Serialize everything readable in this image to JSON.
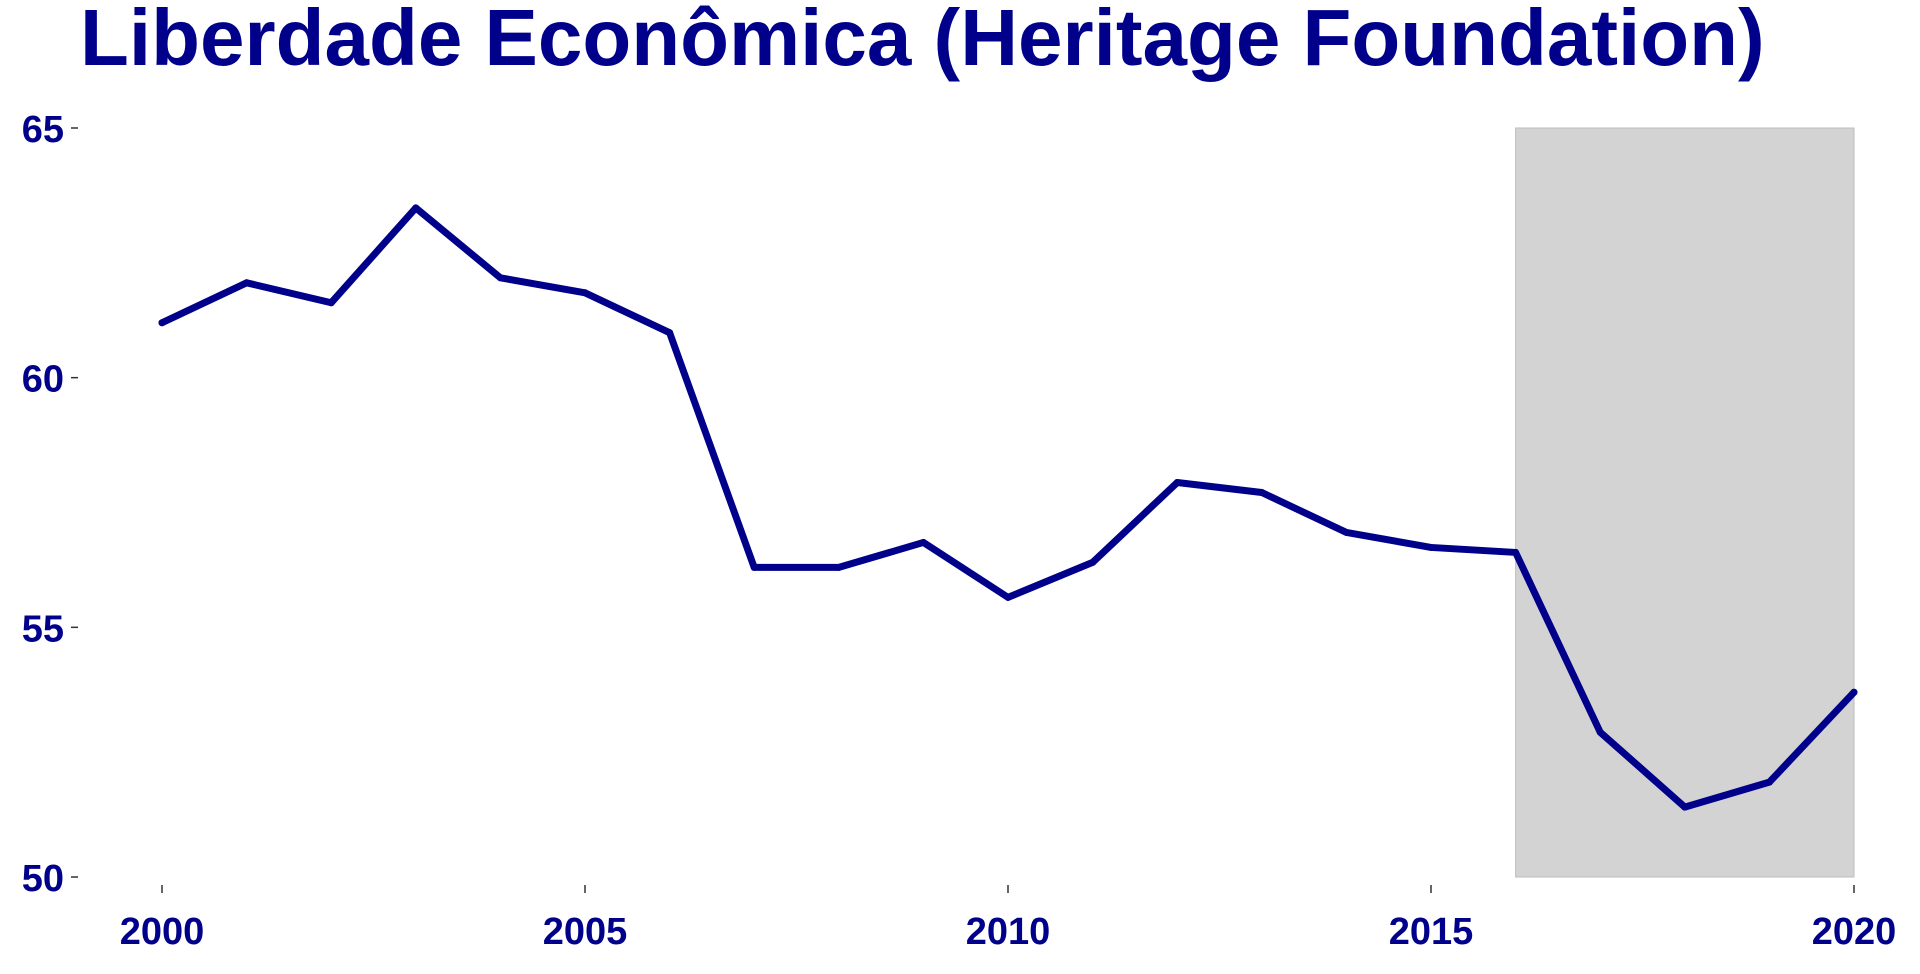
{
  "chart_data": {
    "type": "line",
    "title": "Liberdade Econômica (Heritage Foundation)",
    "xlabel": "",
    "ylabel": "",
    "x": [
      2000,
      2001,
      2002,
      2003,
      2004,
      2005,
      2006,
      2007,
      2008,
      2009,
      2010,
      2011,
      2012,
      2013,
      2014,
      2015,
      2016,
      2017,
      2018,
      2019,
      2020
    ],
    "series": [
      {
        "values": [
          61.1,
          61.9,
          61.5,
          63.4,
          62.0,
          61.7,
          60.9,
          56.2,
          56.2,
          56.7,
          55.6,
          56.3,
          57.9,
          57.7,
          56.9,
          56.6,
          56.5,
          52.9,
          51.4,
          51.9,
          53.7
        ]
      }
    ],
    "xlim": [
      2000,
      2020
    ],
    "ylim": [
      50,
      65
    ],
    "x_ticks": [
      "2000",
      "2005",
      "2010",
      "2015",
      "2020"
    ],
    "y_ticks": [
      "50",
      "55",
      "60",
      "65"
    ],
    "shaded_region": {
      "x_start": 2016,
      "x_end": 2020
    },
    "grid": false,
    "legend": "none",
    "colors": {
      "line": "#00008B",
      "text": "#00008B",
      "shade": "#D3D3D3"
    }
  }
}
